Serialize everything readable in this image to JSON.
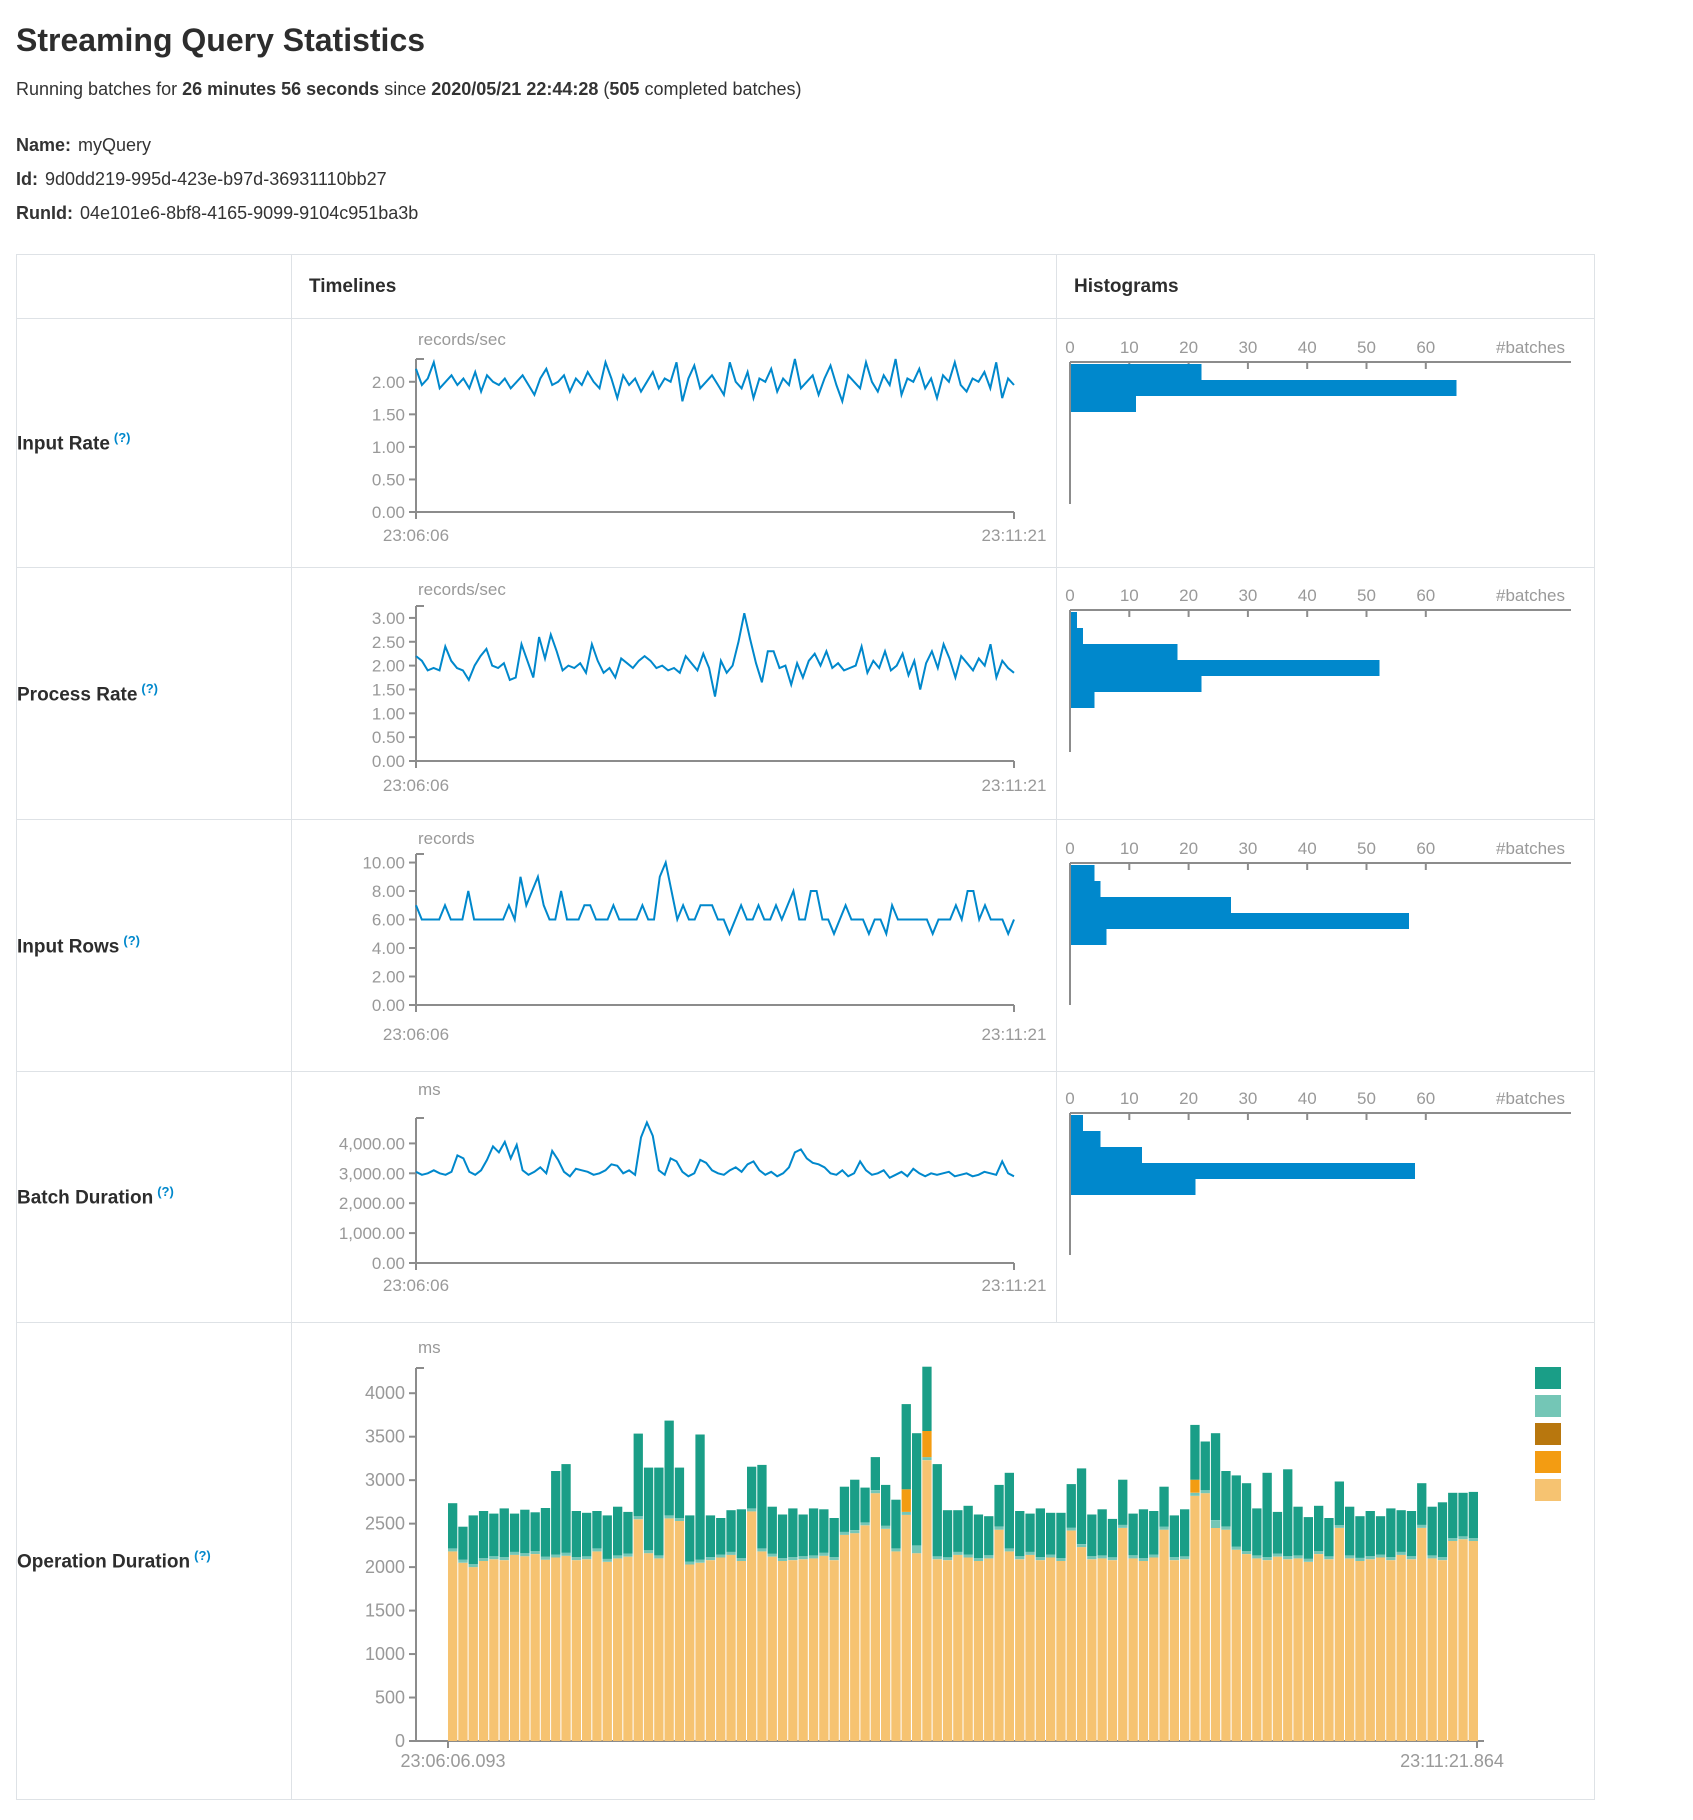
{
  "header": {
    "title": "Streaming Query Statistics",
    "running_prefix": "Running batches for ",
    "duration": "26 minutes 56 seconds",
    "since_text": " since ",
    "start_time": "2020/05/21 22:44:28",
    "paren_open": " (",
    "completed_batches": "505",
    "batches_suffix": " completed batches)"
  },
  "meta": {
    "name_label": "Name:",
    "name": "myQuery",
    "id_label": "Id:",
    "id": "9d0dd219-995d-423e-b97d-36931110bb27",
    "runid_label": "RunId:",
    "runid": "04e101e6-8bf8-4165-9099-9104c951ba3b"
  },
  "table": {
    "col_timelines": "Timelines",
    "col_histograms": "Histograms",
    "rows": [
      {
        "label": "Input Rate",
        "help": "(?)"
      },
      {
        "label": "Process Rate",
        "help": "(?)"
      },
      {
        "label": "Input Rows",
        "help": "(?)"
      },
      {
        "label": "Batch Duration",
        "help": "(?)"
      },
      {
        "label": "Operation Duration",
        "help": "(?)"
      }
    ]
  },
  "colors": {
    "line_blue": "#0088cc",
    "bar_blue": "#0088cc",
    "axis_gray": "#8c8c8c",
    "text_gray": "#999999",
    "border": "#dee2e6"
  },
  "chart_data": [
    {
      "id": "input-rate",
      "type": "line",
      "unit": "records/sec",
      "x_range": [
        "23:06:06",
        "23:11:21"
      ],
      "y_ticks": {
        "values": [
          0,
          0.5,
          1,
          1.5,
          2
        ],
        "labels": [
          "0.00",
          "0.50",
          "1.00",
          "1.50",
          "2.00"
        ]
      },
      "y_axis_max": 2.35,
      "values": [
        2.2,
        1.95,
        2.05,
        2.3,
        1.9,
        2.0,
        2.1,
        1.95,
        2.05,
        1.9,
        2.15,
        1.85,
        2.1,
        2.0,
        1.95,
        2.05,
        1.9,
        2.0,
        2.1,
        1.95,
        1.8,
        2.05,
        2.2,
        1.95,
        2.0,
        2.1,
        1.85,
        2.05,
        1.95,
        2.15,
        2.0,
        1.9,
        2.3,
        2.05,
        1.75,
        2.1,
        1.95,
        2.05,
        1.85,
        2.0,
        2.15,
        1.9,
        2.05,
        2.0,
        2.3,
        1.7,
        2.05,
        2.25,
        1.9,
        2.0,
        2.1,
        1.95,
        1.8,
        2.3,
        2.0,
        1.9,
        2.15,
        1.75,
        2.05,
        2.0,
        2.2,
        1.85,
        2.05,
        1.95,
        2.35,
        1.9,
        2.0,
        2.1,
        1.8,
        2.05,
        2.25,
        1.95,
        1.7,
        2.1,
        2.0,
        1.9,
        2.3,
        2.0,
        1.85,
        2.1,
        1.95,
        2.35,
        1.8,
        2.05,
        2.0,
        2.2,
        1.9,
        2.05,
        1.75,
        2.1,
        2.0,
        2.3,
        1.95,
        1.85,
        2.05,
        2.0,
        2.15,
        1.9,
        2.3,
        1.75,
        2.05,
        1.95
      ],
      "histogram": {
        "x_ticks": [
          0,
          10,
          20,
          30,
          40,
          50,
          60
        ],
        "x_axis_label": "#batches",
        "bins": [
          22,
          65,
          11
        ]
      }
    },
    {
      "id": "process-rate",
      "type": "line",
      "unit": "records/sec",
      "x_range": [
        "23:06:06",
        "23:11:21"
      ],
      "y_ticks": {
        "values": [
          0,
          0.5,
          1,
          1.5,
          2,
          2.5,
          3
        ],
        "labels": [
          "0.00",
          "0.50",
          "1.00",
          "1.50",
          "2.00",
          "2.50",
          "3.00"
        ]
      },
      "y_axis_max": 3.25,
      "values": [
        2.2,
        2.1,
        1.9,
        1.95,
        1.9,
        2.4,
        2.1,
        1.95,
        1.9,
        1.7,
        2.0,
        2.2,
        2.35,
        2.0,
        1.95,
        2.05,
        1.7,
        1.75,
        2.45,
        2.1,
        1.75,
        2.6,
        2.15,
        2.65,
        2.3,
        1.9,
        2.0,
        1.95,
        2.05,
        1.85,
        2.45,
        2.1,
        1.85,
        1.95,
        1.75,
        2.15,
        2.05,
        1.95,
        2.1,
        2.2,
        2.1,
        1.95,
        2.0,
        1.9,
        1.95,
        1.85,
        2.2,
        2.05,
        1.9,
        2.25,
        1.95,
        1.35,
        2.1,
        1.85,
        2.0,
        2.5,
        3.1,
        2.55,
        2.05,
        1.65,
        2.3,
        2.3,
        1.95,
        2.0,
        1.6,
        2.05,
        1.75,
        2.1,
        2.25,
        2.0,
        2.3,
        1.95,
        2.05,
        1.9,
        1.95,
        2.0,
        2.4,
        1.85,
        2.1,
        1.95,
        2.3,
        1.9,
        2.0,
        2.25,
        1.8,
        2.1,
        1.5,
        2.05,
        2.3,
        1.95,
        2.45,
        2.15,
        1.75,
        2.2,
        2.05,
        1.9,
        2.15,
        2.0,
        2.45,
        1.75,
        2.1,
        1.95,
        1.85
      ],
      "histogram": {
        "x_ticks": [
          0,
          10,
          20,
          30,
          40,
          50,
          60
        ],
        "x_axis_label": "#batches",
        "bins": [
          1,
          2,
          18,
          52,
          22,
          4
        ]
      }
    },
    {
      "id": "input-rows",
      "type": "line",
      "unit": "records",
      "x_range": [
        "23:06:06",
        "23:11:21"
      ],
      "y_ticks": {
        "values": [
          0,
          2,
          4,
          6,
          8,
          10
        ],
        "labels": [
          "0.00",
          "2.00",
          "4.00",
          "6.00",
          "8.00",
          "10.00"
        ]
      },
      "y_axis_max": 10.6,
      "values": [
        7,
        6,
        6,
        6,
        6,
        7,
        6,
        6,
        6,
        8,
        6,
        6,
        6,
        6,
        6,
        6,
        7,
        6,
        9,
        7,
        8,
        9,
        7,
        6,
        6,
        8,
        6,
        6,
        6,
        7,
        7,
        6,
        6,
        6,
        7,
        6,
        6,
        6,
        6,
        7,
        6,
        6,
        9,
        10,
        8,
        6,
        7,
        6,
        6,
        7,
        7,
        7,
        6,
        6,
        5,
        6,
        7,
        6,
        6,
        7,
        6,
        6,
        7,
        6,
        7,
        8,
        6,
        6,
        8,
        8,
        6,
        6,
        5,
        6,
        7,
        6,
        6,
        6,
        5,
        6,
        6,
        5,
        7,
        6,
        6,
        6,
        6,
        6,
        6,
        5,
        6,
        6,
        6,
        7,
        6,
        8,
        8,
        6,
        7,
        6,
        6,
        6,
        5,
        6
      ],
      "histogram": {
        "x_ticks": [
          0,
          10,
          20,
          30,
          40,
          50,
          60
        ],
        "x_axis_label": "#batches",
        "bins": [
          4,
          5,
          27,
          57,
          6
        ]
      }
    },
    {
      "id": "batch-duration",
      "type": "line",
      "unit": "ms",
      "x_range": [
        "23:06:06",
        "23:11:21"
      ],
      "y_ticks": {
        "values": [
          0,
          1000,
          2000,
          3000,
          4000
        ],
        "labels": [
          "0.00",
          "1,000.00",
          "2,000.00",
          "3,000.00",
          "4,000.00"
        ]
      },
      "y_axis_max": 4850,
      "values": [
        3050,
        2950,
        3000,
        3100,
        3000,
        2950,
        3050,
        3600,
        3500,
        3050,
        2950,
        3100,
        3450,
        3900,
        3700,
        4050,
        3500,
        3950,
        3100,
        2950,
        3050,
        3200,
        3000,
        3750,
        3450,
        3050,
        2900,
        3150,
        3100,
        3050,
        2950,
        3000,
        3100,
        3300,
        3250,
        3000,
        3100,
        2950,
        4200,
        4700,
        4250,
        3100,
        2950,
        3500,
        3400,
        3050,
        2900,
        3000,
        3450,
        3350,
        3100,
        3000,
        2950,
        3100,
        3200,
        3050,
        3300,
        3400,
        3100,
        2950,
        3050,
        2900,
        3000,
        3200,
        3700,
        3800,
        3500,
        3350,
        3300,
        3200,
        3000,
        2950,
        3100,
        2900,
        3000,
        3400,
        3100,
        2950,
        3000,
        3100,
        2850,
        2950,
        3050,
        2900,
        3150,
        3000,
        2900,
        3000,
        2950,
        3000,
        3050,
        2900,
        2950,
        3000,
        2900,
        2950,
        3050,
        3000,
        2950,
        3400,
        3000,
        2900
      ],
      "histogram": {
        "x_ticks": [
          0,
          10,
          20,
          30,
          40,
          50,
          60
        ],
        "x_axis_label": "#batches",
        "bins": [
          2,
          5,
          12,
          58,
          21
        ]
      }
    },
    {
      "id": "operation-duration",
      "type": "stacked_bar",
      "unit": "ms",
      "x_range": [
        "23:06:06.093",
        "23:11:21.864"
      ],
      "y_ticks": {
        "values": [
          0,
          500,
          1000,
          1500,
          2000,
          2500,
          3000,
          3500,
          4000
        ],
        "labels": [
          "0",
          "500",
          "1000",
          "1500",
          "2000",
          "2500",
          "3000",
          "3500",
          "4000"
        ]
      },
      "y_axis_max": 4290,
      "series": [
        {
          "name": "segment-tan",
          "color": "#f6c371",
          "values": [
            2180,
            2050,
            2000,
            2070,
            2090,
            2080,
            2140,
            2125,
            2150,
            2085,
            2110,
            2130,
            2080,
            2090,
            2180,
            2060,
            2100,
            2120,
            2550,
            2160,
            2100,
            2560,
            2530,
            2030,
            2050,
            2080,
            2110,
            2140,
            2070,
            2640,
            2180,
            2120,
            2070,
            2080,
            2090,
            2100,
            2130,
            2080,
            2370,
            2390,
            2480,
            2850,
            2440,
            2180,
            2600,
            2160,
            3230,
            2090,
            2080,
            2140,
            2110,
            2070,
            2100,
            2430,
            2180,
            2090,
            2140,
            2080,
            2110,
            2070,
            2420,
            2230,
            2090,
            2100,
            2080,
            2450,
            2100,
            2070,
            2110,
            2430,
            2080,
            2090,
            2820,
            2850,
            2450,
            2430,
            2200,
            2150,
            2100,
            2080,
            2120,
            2090,
            2100,
            2060,
            2150,
            2090,
            2450,
            2100,
            2070,
            2090,
            2110,
            2080,
            2140,
            2090,
            2450,
            2100,
            2080,
            2300,
            2320,
            2300
          ]
        },
        {
          "name": "segment-light-teal",
          "color": "#74c6b6",
          "values": [
            35,
            35,
            35,
            35,
            35,
            35,
            35,
            35,
            35,
            35,
            35,
            35,
            35,
            35,
            35,
            35,
            35,
            35,
            35,
            35,
            35,
            35,
            35,
            35,
            35,
            35,
            35,
            35,
            35,
            35,
            35,
            35,
            35,
            35,
            35,
            35,
            35,
            35,
            35,
            35,
            35,
            35,
            35,
            35,
            35,
            90,
            35,
            35,
            35,
            35,
            35,
            35,
            35,
            35,
            35,
            35,
            35,
            35,
            35,
            35,
            35,
            35,
            35,
            35,
            35,
            35,
            35,
            35,
            35,
            35,
            35,
            35,
            35,
            35,
            90,
            35,
            35,
            35,
            35,
            35,
            35,
            35,
            35,
            35,
            35,
            35,
            35,
            35,
            35,
            35,
            35,
            35,
            35,
            35,
            35,
            35,
            35,
            35,
            35,
            35
          ]
        },
        {
          "name": "segment-orange",
          "color": "#f39c12",
          "values": [
            0,
            0,
            0,
            0,
            0,
            0,
            0,
            0,
            0,
            0,
            0,
            0,
            0,
            0,
            0,
            0,
            0,
            0,
            0,
            0,
            0,
            0,
            0,
            0,
            0,
            0,
            0,
            0,
            0,
            0,
            0,
            0,
            0,
            0,
            0,
            0,
            0,
            0,
            0,
            0,
            0,
            0,
            0,
            0,
            260,
            0,
            300,
            0,
            0,
            0,
            0,
            0,
            0,
            0,
            0,
            0,
            0,
            0,
            0,
            0,
            0,
            0,
            0,
            0,
            0,
            0,
            0,
            0,
            0,
            0,
            0,
            0,
            150,
            0,
            0,
            0,
            0,
            0,
            0,
            0,
            0,
            0,
            0,
            0,
            0,
            0,
            0,
            0,
            0,
            0,
            0,
            0,
            0,
            0,
            0,
            0,
            0,
            0,
            0,
            0
          ]
        },
        {
          "name": "segment-teal",
          "color": "#1a9e87",
          "values": [
            520,
            380,
            560,
            540,
            490,
            560,
            440,
            500,
            445,
            560,
            960,
            1020,
            530,
            500,
            430,
            500,
            560,
            480,
            950,
            950,
            1010,
            1090,
            580,
            530,
            1440,
            480,
            420,
            480,
            560,
            480,
            960,
            540,
            500,
            560,
            480,
            540,
            500,
            450,
            520,
            580,
            400,
            380,
            470,
            560,
            980,
            1290,
            740,
            1060,
            540,
            480,
            560,
            500,
            450,
            480,
            870,
            520,
            440,
            560,
            480,
            520,
            500,
            870,
            480,
            530,
            440,
            520,
            480,
            560,
            500,
            460,
            480,
            540,
            630,
            560,
            1000,
            640,
            820,
            780,
            540,
            970,
            480,
            1000,
            560,
            480,
            520,
            440,
            500,
            560,
            480,
            520,
            440,
            560,
            480,
            520,
            480,
            560,
            630,
            520,
            500,
            530
          ]
        }
      ],
      "legend_colors": [
        "#1a9e87",
        "#74c6b6",
        "#b8770e",
        "#f39c12",
        "#f6c371"
      ]
    }
  ]
}
